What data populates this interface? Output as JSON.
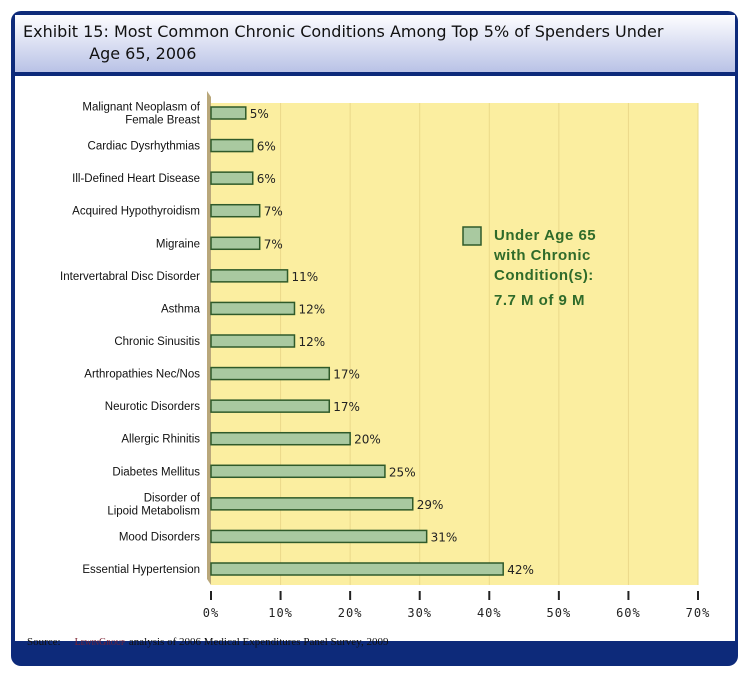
{
  "header": {
    "title": "Exhibit 15: Most Common Chronic Conditions Among Top 5% of Spenders Under\n             Age 65, 2006"
  },
  "source": {
    "label": "Source:",
    "logo": "LewinGroup",
    "text": "analysis of 2006 Medical Expenditures Panel Survey, 2009"
  },
  "colors": {
    "frame": "#0d2a7a",
    "plot_bg": "#fbeea0",
    "bar": "#a9c9a0",
    "bar_border": "#2f5a2a",
    "legend_text": "#2f6b2a"
  },
  "chart_data": {
    "type": "bar",
    "orientation": "horizontal",
    "categories": [
      "Malignant Neoplasm of\nFemale Breast",
      "Cardiac Dysrhythmias",
      "Ill-Defined Heart Disease",
      "Acquired Hypothyroidism",
      "Migraine",
      "Intervertabral Disc Disorder",
      "Asthma",
      "Chronic Sinusitis",
      "Arthropathies Nec/Nos",
      "Neurotic Disorders",
      "Allergic Rhinitis",
      "Diabetes Mellitus",
      "Disorder of\nLipoid Metabolism",
      "Mood Disorders",
      "Essential Hypertension"
    ],
    "values": [
      5,
      6,
      6,
      7,
      7,
      11,
      12,
      12,
      17,
      17,
      20,
      25,
      29,
      31,
      42
    ],
    "data_labels": [
      "5%",
      "6%",
      "6%",
      "7%",
      "7%",
      "11%",
      "12%",
      "12%",
      "17%",
      "17%",
      "20%",
      "25%",
      "29%",
      "31%",
      "42%"
    ],
    "xlim": [
      0,
      70
    ],
    "x_ticks": [
      "0%",
      "10%",
      "20%",
      "30%",
      "40%",
      "50%",
      "60%",
      "70%"
    ],
    "grid": true,
    "legend": {
      "position": "right",
      "lines": [
        "Under Age 65",
        "with Chronic",
        "Condition(s):"
      ],
      "note": "7.7 M of 9 M"
    }
  }
}
